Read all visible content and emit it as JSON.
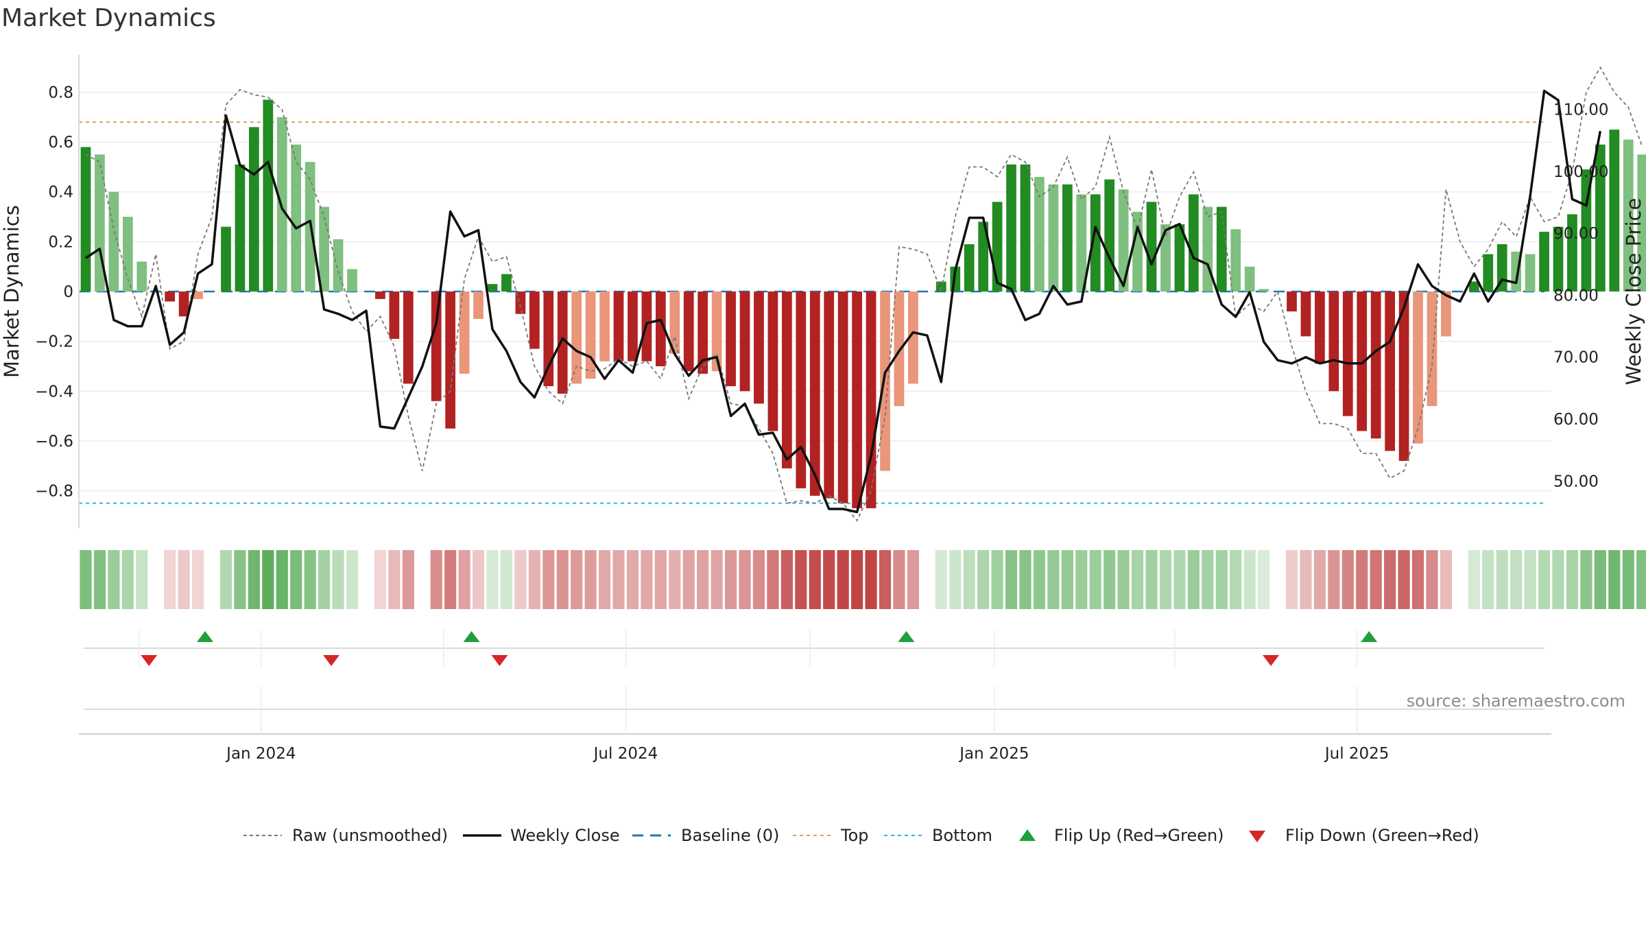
{
  "title": "Market Dynamics",
  "source": "source: sharemaestro.com",
  "chart_data": {
    "type": "bar",
    "title": "Market Dynamics",
    "ylabel": "Market Dynamics",
    "y2label": "Weekly Close Price",
    "ylim": [
      -0.95,
      0.95
    ],
    "yticks": [
      -0.8,
      -0.6,
      -0.4,
      -0.2,
      0,
      0.2,
      0.4,
      0.6,
      0.8
    ],
    "ytick_labels": [
      "−0.8",
      "−0.6",
      "−0.4",
      "−0.2",
      "0",
      "0.2",
      "0.4",
      "0.6",
      "0.8"
    ],
    "y2lim": [
      42.4,
      118.8
    ],
    "y2ticks": [
      50,
      60,
      70,
      80,
      90,
      100,
      110
    ],
    "y2tick_labels": [
      "50.00",
      "60.00",
      "70.00",
      "80.00",
      "90.00",
      "100.00",
      "110.00"
    ],
    "date_start": "2023-10-02",
    "xlim": [
      "2023-10-02",
      "2025-10-06"
    ],
    "xticks": [
      {
        "date": "2024-01-01",
        "label": "Jan 2024"
      },
      {
        "date": "2024-07-01",
        "label": "Jul 2024"
      },
      {
        "date": "2025-01-01",
        "label": "Jan 2025"
      },
      {
        "date": "2025-07-01",
        "label": "Jul 2025"
      }
    ],
    "top_level": 0.68,
    "bottom_level": -0.85,
    "baseline": 0,
    "dynamics": [
      0.58,
      0.55,
      0.4,
      0.3,
      0.12,
      0.0,
      -0.04,
      -0.1,
      -0.03,
      0.0,
      0.26,
      0.51,
      0.66,
      0.77,
      0.7,
      0.59,
      0.52,
      0.34,
      0.21,
      0.09,
      0.0,
      -0.03,
      -0.19,
      -0.37,
      0.0,
      -0.44,
      -0.55,
      -0.33,
      -0.11,
      0.03,
      0.07,
      -0.09,
      -0.23,
      -0.38,
      -0.41,
      -0.37,
      -0.35,
      -0.28,
      -0.28,
      -0.28,
      -0.28,
      -0.3,
      -0.25,
      -0.32,
      -0.33,
      -0.32,
      -0.38,
      -0.4,
      -0.45,
      -0.56,
      -0.71,
      -0.79,
      -0.82,
      -0.83,
      -0.85,
      -0.87,
      -0.87,
      -0.72,
      -0.46,
      -0.37,
      0.0,
      0.04,
      0.1,
      0.19,
      0.28,
      0.36,
      0.51,
      0.51,
      0.46,
      0.43,
      0.43,
      0.39,
      0.39,
      0.45,
      0.41,
      0.32,
      0.36,
      0.27,
      0.27,
      0.39,
      0.34,
      0.34,
      0.25,
      0.1,
      0.01,
      0.0,
      -0.08,
      -0.18,
      -0.29,
      -0.4,
      -0.5,
      -0.56,
      -0.59,
      -0.64,
      -0.68,
      -0.61,
      -0.46,
      -0.18,
      0.0,
      0.04,
      0.15,
      0.19,
      0.16,
      0.15,
      0.24,
      0.26,
      0.31,
      0.49,
      0.59,
      0.65,
      0.61,
      0.55
    ],
    "raw": [
      0.55,
      0.52,
      0.25,
      0.05,
      -0.1,
      0.15,
      -0.23,
      -0.2,
      0.15,
      0.3,
      0.75,
      0.81,
      0.79,
      0.78,
      0.73,
      0.52,
      0.45,
      0.3,
      0.08,
      -0.08,
      -0.16,
      -0.1,
      -0.22,
      -0.5,
      -0.72,
      -0.45,
      -0.4,
      0.05,
      0.22,
      0.12,
      0.14,
      -0.06,
      -0.3,
      -0.4,
      -0.45,
      -0.3,
      -0.32,
      -0.31,
      -0.27,
      -0.3,
      -0.28,
      -0.35,
      -0.18,
      -0.43,
      -0.3,
      -0.25,
      -0.45,
      -0.46,
      -0.55,
      -0.65,
      -0.85,
      -0.84,
      -0.85,
      -0.82,
      -0.85,
      -0.92,
      -0.8,
      -0.5,
      0.18,
      0.17,
      0.15,
      0.0,
      0.3,
      0.5,
      0.5,
      0.46,
      0.55,
      0.52,
      0.38,
      0.42,
      0.54,
      0.37,
      0.42,
      0.62,
      0.4,
      0.25,
      0.49,
      0.22,
      0.38,
      0.48,
      0.3,
      0.32,
      -0.1,
      -0.05,
      -0.08,
      0.0,
      -0.22,
      -0.4,
      -0.53,
      -0.53,
      -0.55,
      -0.65,
      -0.65,
      -0.75,
      -0.72,
      -0.55,
      -0.3,
      0.41,
      0.2,
      0.1,
      0.17,
      0.28,
      0.22,
      0.38,
      0.28,
      0.3,
      0.48,
      0.8,
      0.9,
      0.8,
      0.74,
      0.58
    ],
    "weekly_close": [
      86,
      87.5,
      76,
      75,
      75,
      81.5,
      72,
      74,
      83.5,
      85,
      109,
      101,
      99.5,
      101.5,
      94,
      90.8,
      92,
      77.7,
      77,
      76,
      77.5,
      58.8,
      58.5,
      63.5,
      68.5,
      75.5,
      93.5,
      89.5,
      90.5,
      74.5,
      71,
      66,
      63.5,
      68.5,
      73,
      71,
      70,
      66.5,
      69.5,
      67.5,
      75.5,
      76,
      70.5,
      67,
      69.5,
      70,
      60.5,
      62.5,
      57.5,
      57.8,
      53.5,
      55.5,
      51,
      45.5,
      45.5,
      45,
      54,
      67.5,
      71,
      74,
      73.5,
      66,
      84,
      92.5,
      92.5,
      82,
      81,
      76,
      77,
      81.5,
      78.5,
      79,
      91,
      86,
      81.5,
      91,
      85,
      90.5,
      91.5,
      86,
      85,
      78.5,
      76.5,
      80.5,
      72.5,
      69.5,
      69,
      70,
      69,
      69.5,
      69,
      69,
      71,
      72.5,
      78,
      85,
      81.5,
      80,
      79,
      83.5,
      79,
      82.5,
      82,
      96,
      113,
      111.5,
      95.5,
      94.5,
      106.5
    ],
    "flip_up": [
      "2023-12-04",
      "2024-04-15",
      "2024-11-18",
      "2025-07-07"
    ],
    "flip_down": [
      "2023-11-06",
      "2024-02-05",
      "2024-04-29",
      "2025-05-19"
    ],
    "legend": {
      "position": "bottom-center",
      "entries": [
        "Raw (unsmoothed)",
        "Weekly Close",
        "Baseline (0)",
        "Top",
        "Bottom",
        "Flip Up (Red→Green)",
        "Flip Down (Green→Red)"
      ]
    },
    "grid": true
  },
  "colors": {
    "strong_green": "#228b22",
    "light_green": "#7fbf7f",
    "strong_red": "#b22222",
    "light_red": "#e9967a",
    "top_line": "#dda35a",
    "bottom_line": "#22bcd4",
    "baseline": "#1f77b4",
    "flip_up": "#1fa03a",
    "flip_down": "#d62728",
    "price": "#111111",
    "raw": "#777777"
  }
}
